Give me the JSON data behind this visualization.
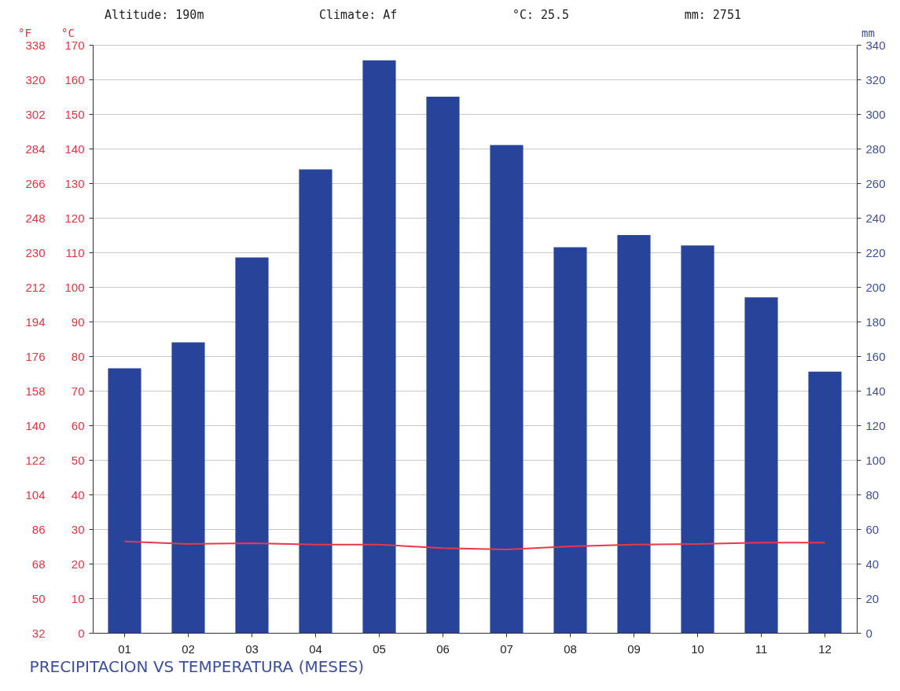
{
  "chart_data": {
    "type": "bar",
    "title": "PRECIPITACION VS TEMPERATURA (MESES)",
    "annotations": [
      "Altitude: 190m",
      "Climate: Af",
      "°C: 25.5",
      "mm: 2751"
    ],
    "categories": [
      "01",
      "02",
      "03",
      "04",
      "05",
      "06",
      "07",
      "08",
      "09",
      "10",
      "11",
      "12"
    ],
    "ylabel": "°C",
    "y2label": "mm",
    "y3label": "°F",
    "series": [
      {
        "axis": "y2",
        "color": "#27449a",
        "values": [
          153,
          168,
          217,
          268,
          331,
          310,
          282,
          223,
          230,
          224,
          194,
          151
        ]
      },
      {
        "type": "line",
        "axis": "y",
        "color": "#e8394a",
        "values": [
          26.4,
          25.7,
          25.9,
          25.5,
          25.5,
          24.5,
          24.1,
          25.0,
          25.5,
          25.7,
          26.1,
          26.1
        ]
      }
    ],
    "ylim": [
      0,
      170
    ],
    "yticks": [
      0,
      10,
      20,
      30,
      40,
      50,
      60,
      70,
      80,
      90,
      100,
      110,
      120,
      130,
      140,
      150,
      160,
      170
    ],
    "y2lim": [
      0,
      340
    ],
    "y2ticks": [
      0,
      20,
      40,
      60,
      80,
      100,
      120,
      140,
      160,
      180,
      200,
      220,
      240,
      260,
      280,
      300,
      320,
      340
    ],
    "y3lim": [
      32,
      338
    ],
    "y3ticks": [
      32,
      50,
      68,
      86,
      104,
      122,
      140,
      158,
      176,
      194,
      212,
      230,
      248,
      266,
      284,
      302,
      320,
      338
    ],
    "grid": "y"
  }
}
